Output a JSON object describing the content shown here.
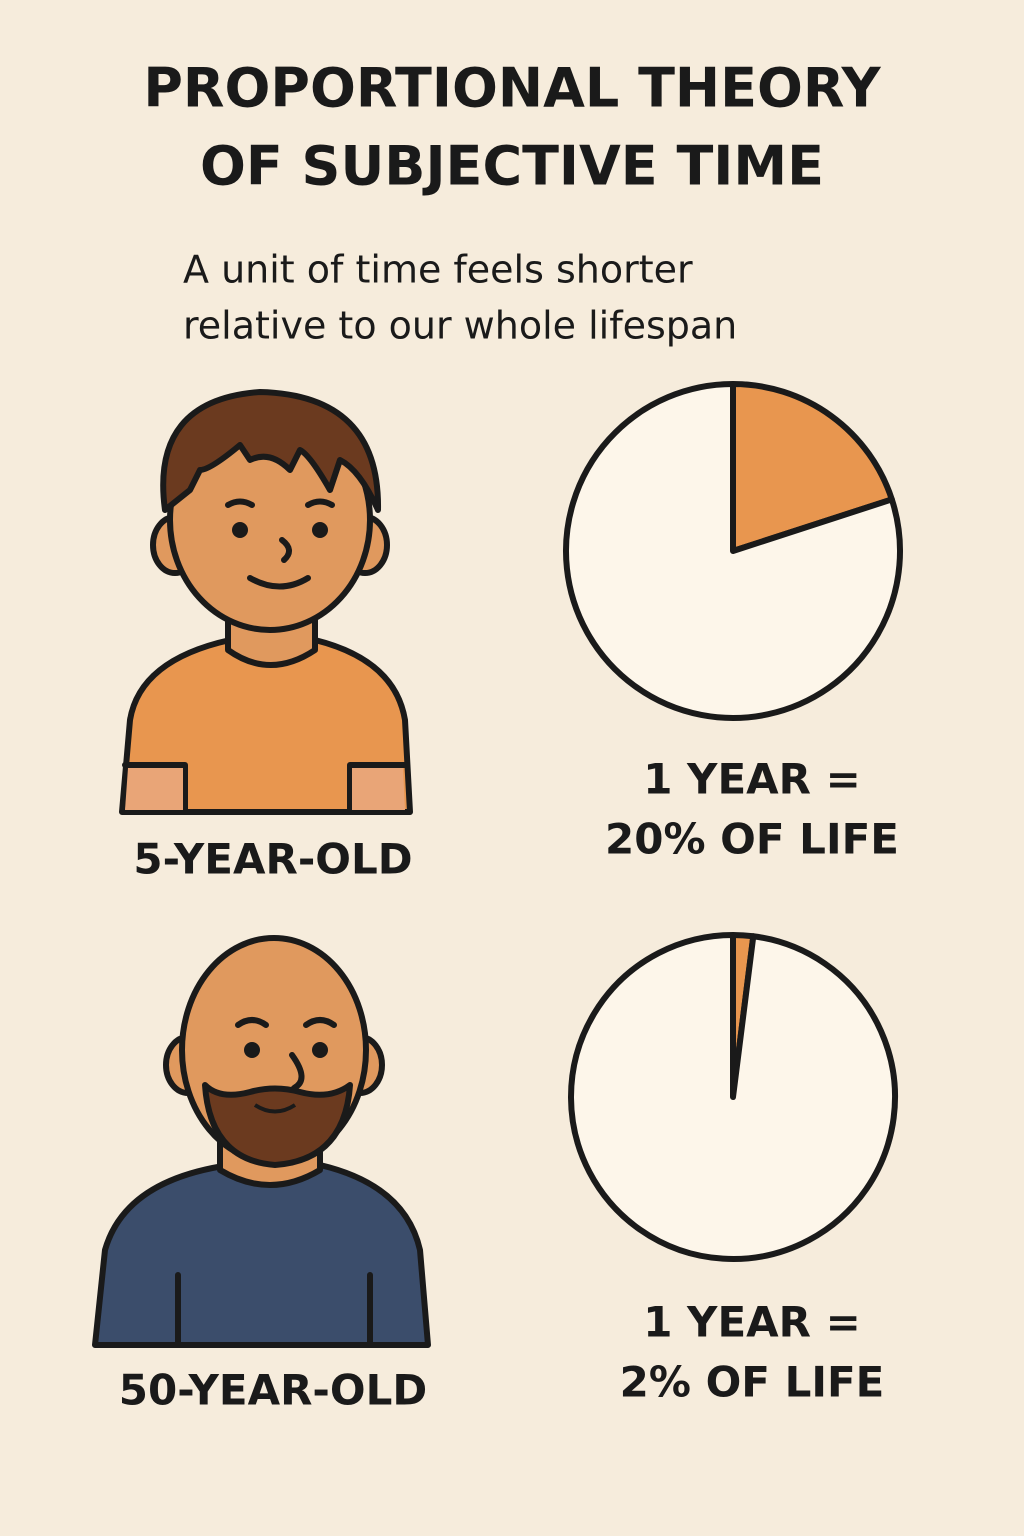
{
  "title": [
    "PROPORTIONAL THEORY",
    "OF SUBJECTIVE TIME"
  ],
  "subtitle": [
    "A unit of time feels shorter",
    "relative to our whole lifespan"
  ],
  "people": [
    "5-YEAR-OLD",
    "50-YEAR-OLD"
  ],
  "chart_data": [
    {
      "type": "pie",
      "values": [
        20,
        80
      ],
      "colors": [
        "#e8964f",
        "#fdf6ea"
      ],
      "caption": [
        "1 YEAR =",
        "20% OF LIFE"
      ]
    },
    {
      "type": "pie",
      "values": [
        2,
        98
      ],
      "colors": [
        "#e8964f",
        "#fdf6ea"
      ],
      "caption": [
        "1 YEAR =",
        "2% OF LIFE"
      ]
    }
  ]
}
